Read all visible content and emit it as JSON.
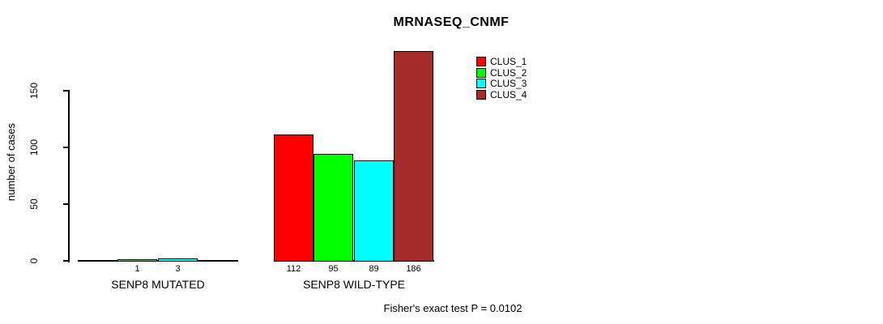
{
  "title": "MRNASEQ_CNMF",
  "y_axis": {
    "label": "number of cases",
    "tick_labels": [
      "0",
      "50",
      "100",
      "150"
    ]
  },
  "legend": {
    "items": [
      {
        "label": "CLUS_1",
        "color": "#FF0000"
      },
      {
        "label": "CLUS_2",
        "color": "#00FF00"
      },
      {
        "label": "CLUS_3",
        "color": "#00FFFF"
      },
      {
        "label": "CLUS_4",
        "color": "#A52A2A"
      }
    ]
  },
  "footer": "Fisher's exact test P = 0.0102",
  "chart_data": {
    "type": "bar",
    "title": "MRNASEQ_CNMF",
    "xlabel": "",
    "ylabel": "number of cases",
    "ylim": [
      0,
      150
    ],
    "yticks": [
      0,
      50,
      100,
      150
    ],
    "grid": false,
    "legend_position": "top-right",
    "categories": [
      "SENP8 MUTATED",
      "SENP8 WILD-TYPE"
    ],
    "series": [
      {
        "name": "CLUS_1",
        "color": "#FF0000",
        "values": [
          0,
          112
        ]
      },
      {
        "name": "CLUS_2",
        "color": "#00FF00",
        "values": [
          1,
          95
        ]
      },
      {
        "name": "CLUS_3",
        "color": "#00FFFF",
        "values": [
          3,
          89
        ]
      },
      {
        "name": "CLUS_4",
        "color": "#A52A2A",
        "values": [
          0,
          186
        ]
      }
    ],
    "bar_value_labels": "value printed below each nonzero bar",
    "visible_bar_labels": {
      "SENP8 MUTATED": [
        "1",
        "3"
      ],
      "SENP8 WILD-TYPE": [
        "112",
        "95",
        "89",
        "186"
      ]
    },
    "annotation": "Fisher's exact test P = 0.0102"
  }
}
